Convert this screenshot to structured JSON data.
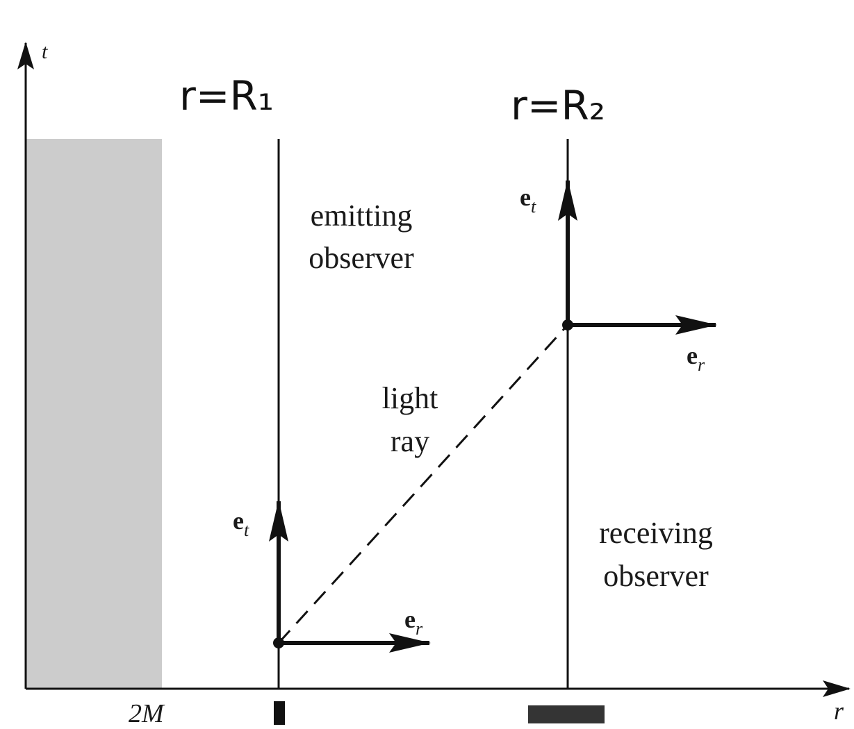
{
  "axes": {
    "vertical_label": "t",
    "horizontal_label": "r",
    "horizon_label": "2M"
  },
  "observers": {
    "emitter": {
      "handwritten_label": "r=R₁",
      "description_line1": "emitting",
      "description_line2": "observer",
      "basis_time": "e",
      "basis_time_sub": "t",
      "basis_radial": "e",
      "basis_radial_sub": "r"
    },
    "receiver": {
      "handwritten_label": "r=R₂",
      "description_line1": "receiving",
      "description_line2": "observer",
      "basis_time": "e",
      "basis_time_sub": "t",
      "basis_radial": "e",
      "basis_radial_sub": "r"
    }
  },
  "light_ray": {
    "line1": "light",
    "line2": "ray"
  },
  "colors": {
    "ink": "#111111",
    "horizon_region": "#cccccc"
  }
}
